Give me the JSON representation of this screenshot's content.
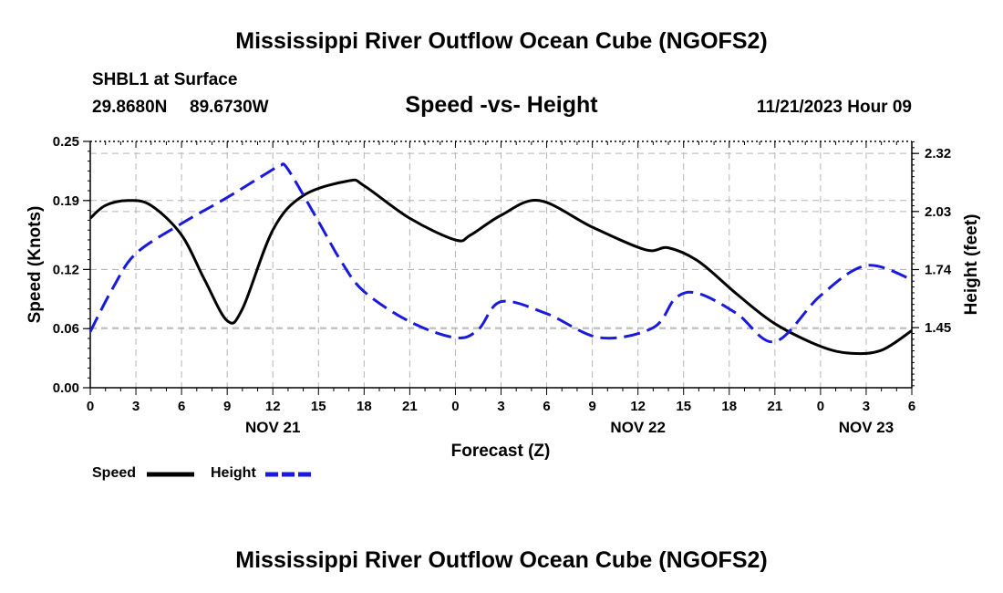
{
  "page": {
    "title": "Mississippi River Outflow Ocean Cube (NGOFS2)",
    "bottom_title": "Mississippi River Outflow Ocean Cube (NGOFS2)"
  },
  "station": {
    "name": "SHBL1 at Surface",
    "lat": "29.8680N",
    "lon": "89.6730W",
    "datetime": "11/21/2023 Hour 09"
  },
  "legend": {
    "speed_label": "Speed",
    "height_label": "Height"
  },
  "colors": {
    "speed": "#000000",
    "height": "#1a1adc",
    "grid": "#b4b4b4"
  },
  "chart_data": {
    "type": "line",
    "title": "Speed -vs- Height",
    "xlabel": "Forecast (Z)",
    "ylabel": "Speed (Knots)",
    "y2label": "Height (feet)",
    "x_unit": "hours since 11/21 00Z",
    "xlim": [
      0,
      54
    ],
    "ylim": [
      0,
      0.25
    ],
    "y2lim": [
      1.15,
      2.38
    ],
    "x_ticks": [
      0,
      3,
      6,
      9,
      12,
      15,
      18,
      21,
      24,
      27,
      30,
      33,
      36,
      39,
      42,
      45,
      48,
      51,
      54
    ],
    "x_tick_labels": [
      "0",
      "3",
      "6",
      "9",
      "12",
      "15",
      "18",
      "21",
      "0",
      "3",
      "6",
      "9",
      "12",
      "15",
      "18",
      "21",
      "0",
      "3",
      "6"
    ],
    "date_labels": [
      {
        "x": 12,
        "label": "NOV 21"
      },
      {
        "x": 36,
        "label": "NOV 22"
      },
      {
        "x": 51,
        "label": "NOV 23"
      }
    ],
    "y_ticks": [
      0.0,
      0.06,
      0.12,
      0.19,
      0.25
    ],
    "y_tick_labels": [
      "0.00",
      "0.06",
      "0.12",
      "0.19",
      "0.25"
    ],
    "y2_ticks": [
      1.45,
      1.74,
      2.03,
      2.32
    ],
    "y2_tick_labels": [
      "1.45",
      "1.74",
      "2.03",
      "2.32"
    ],
    "grid": true,
    "legend_position": "bottom-left",
    "series": [
      {
        "name": "Speed",
        "axis": "left",
        "style": "solid",
        "x": [
          0,
          1,
          2.5,
          4,
          6,
          7.5,
          9,
          10,
          12,
          14,
          17,
          18,
          21,
          24,
          25,
          27,
          29.5,
          33,
          36.5,
          38,
          40,
          42.5,
          45,
          48,
          50,
          52,
          54
        ],
        "values": [
          0.172,
          0.185,
          0.19,
          0.185,
          0.155,
          0.11,
          0.068,
          0.08,
          0.16,
          0.195,
          0.21,
          0.205,
          0.172,
          0.15,
          0.155,
          0.175,
          0.19,
          0.163,
          0.14,
          0.142,
          0.128,
          0.095,
          0.065,
          0.042,
          0.035,
          0.038,
          0.058
        ]
      },
      {
        "name": "Height",
        "axis": "right",
        "style": "dashed",
        "x": [
          0,
          1.5,
          3,
          6,
          9,
          12,
          12.5,
          13,
          15,
          16.5,
          18,
          21,
          24,
          25.5,
          27,
          30,
          33.5,
          37,
          38.5,
          40,
          42.5,
          45,
          48,
          51,
          54
        ],
        "values": [
          1.43,
          1.65,
          1.82,
          1.97,
          2.1,
          2.24,
          2.26,
          2.24,
          1.98,
          1.78,
          1.63,
          1.48,
          1.4,
          1.44,
          1.58,
          1.52,
          1.4,
          1.45,
          1.6,
          1.62,
          1.52,
          1.38,
          1.61,
          1.76,
          1.69
        ]
      }
    ]
  }
}
